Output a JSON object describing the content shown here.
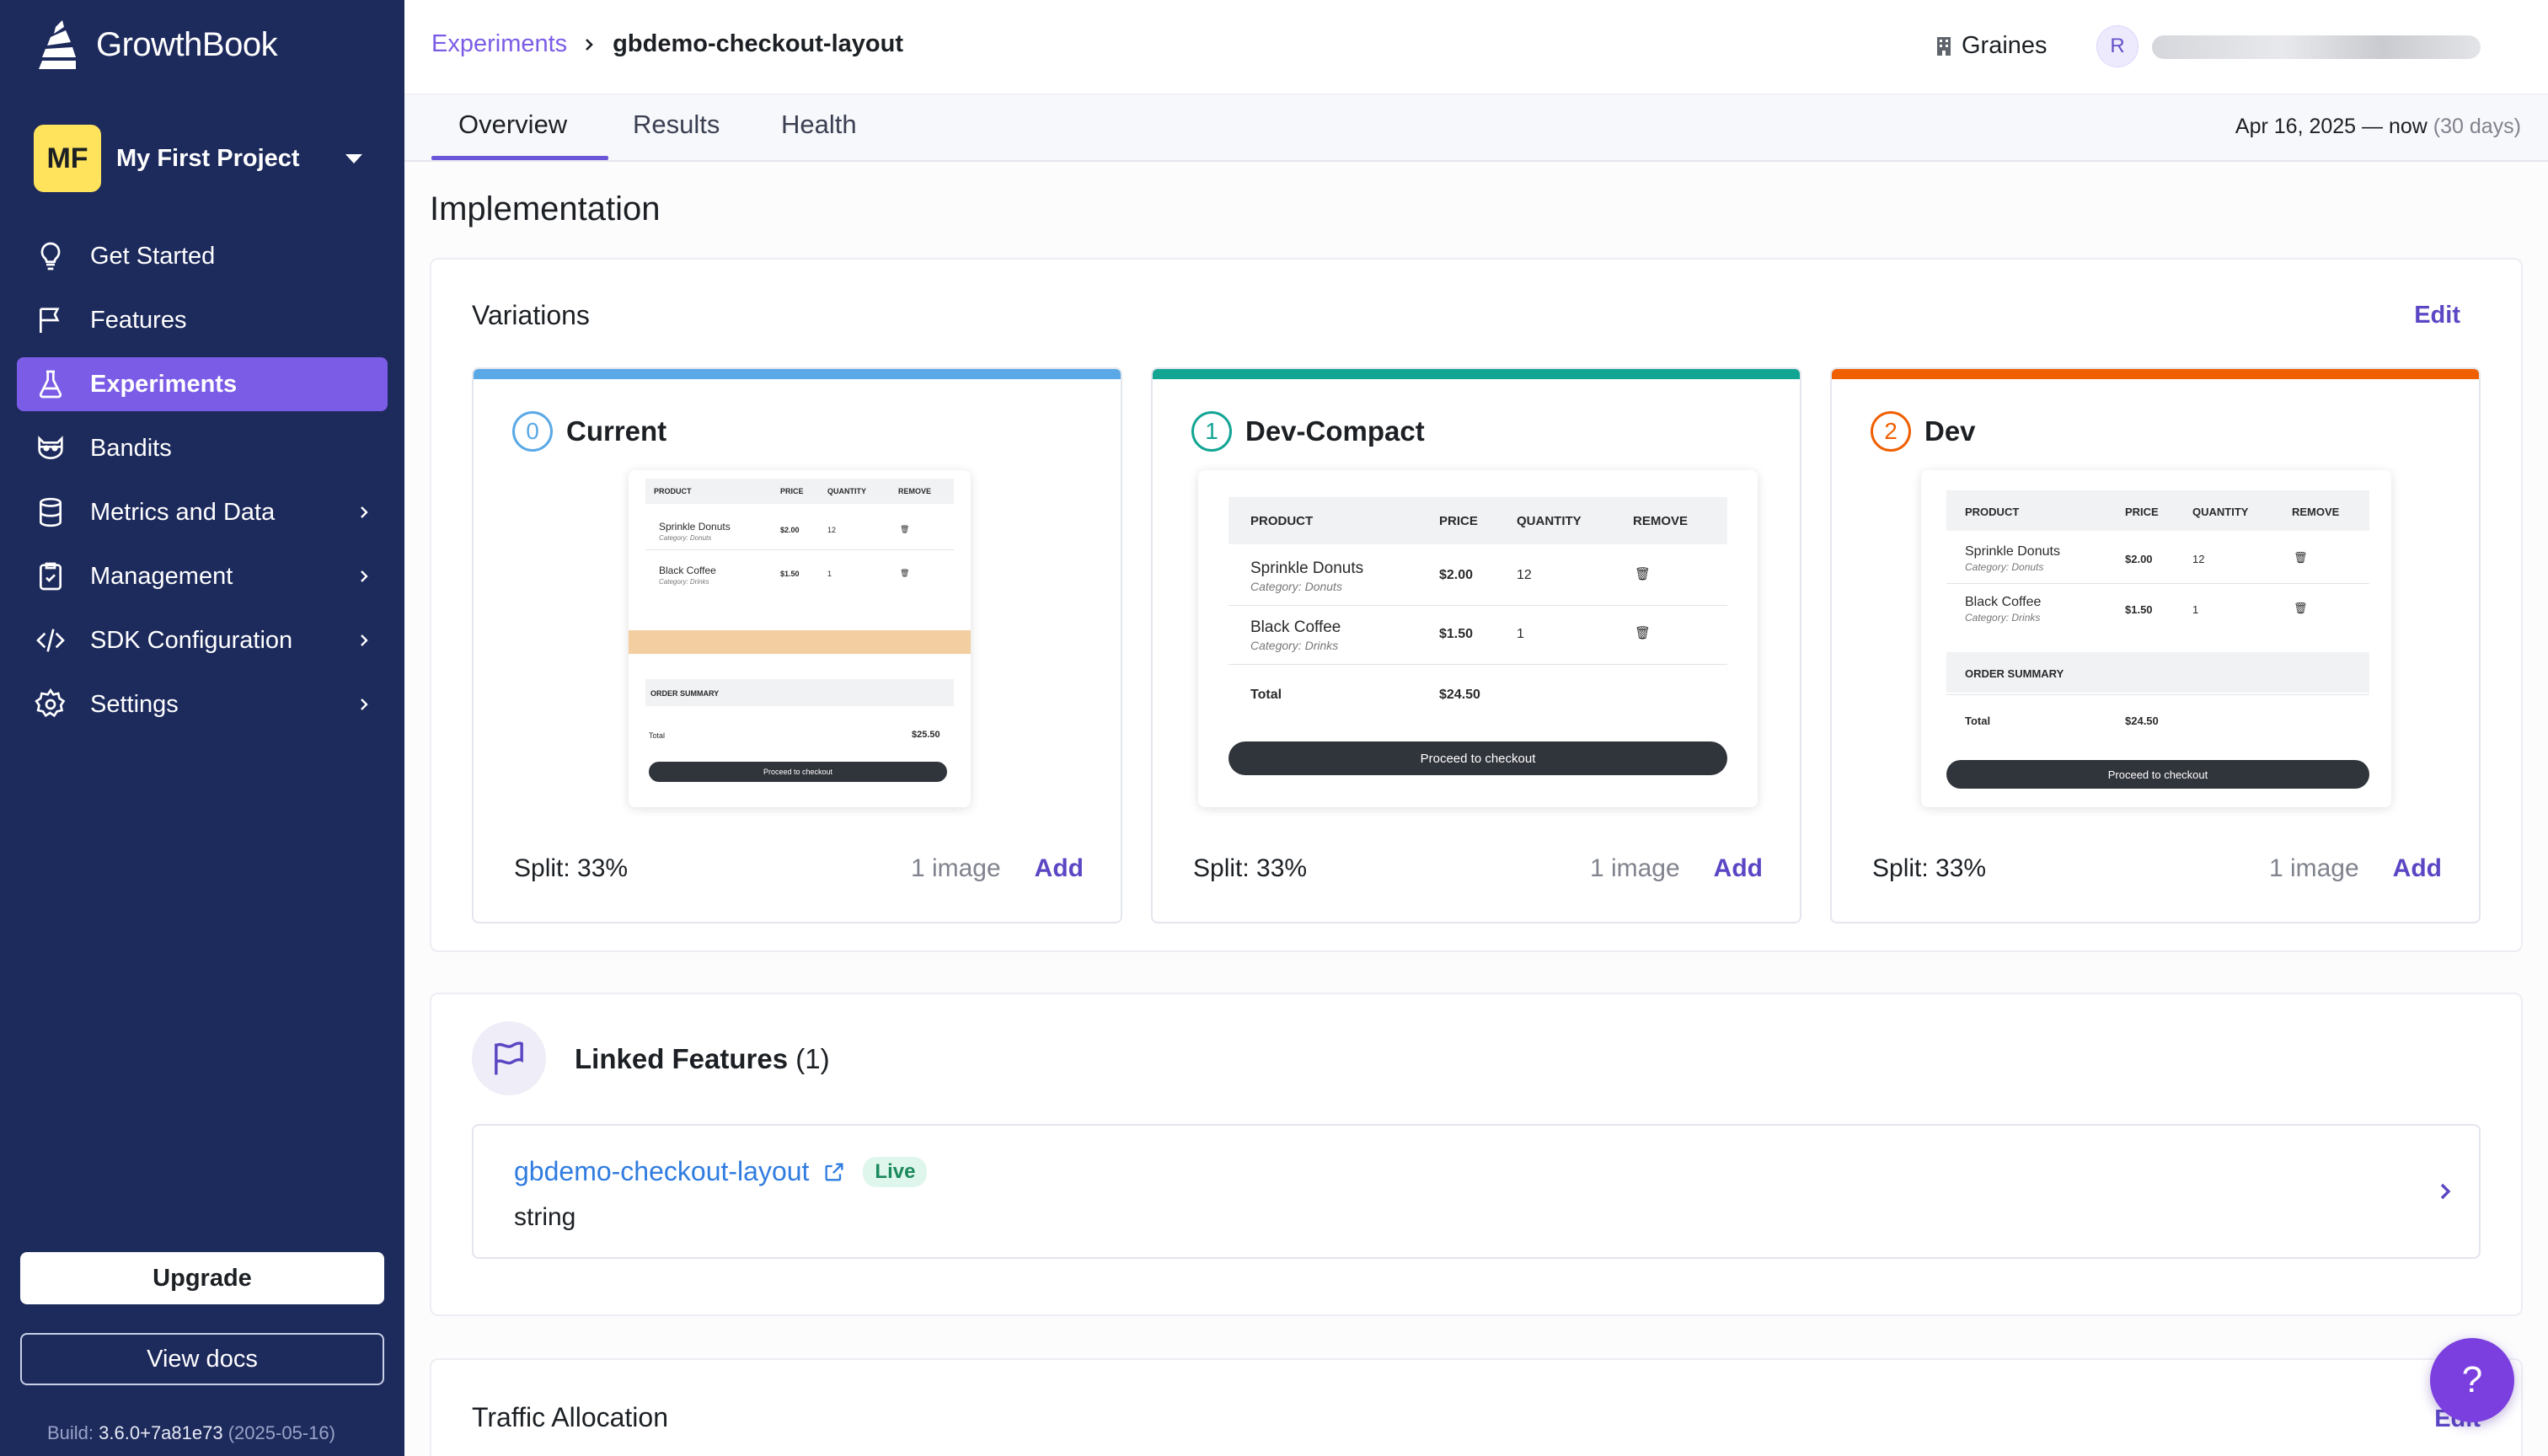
{
  "sidebar": {
    "brand": "GrowthBook",
    "project": {
      "initials": "MF",
      "name": "My First Project"
    },
    "items": [
      {
        "label": "Get Started",
        "icon": "lightbulb-icon"
      },
      {
        "label": "Features",
        "icon": "flag-icon"
      },
      {
        "label": "Experiments",
        "icon": "flask-icon",
        "active": true
      },
      {
        "label": "Bandits",
        "icon": "bandit-icon"
      },
      {
        "label": "Metrics and Data",
        "icon": "database-icon",
        "submenu": true
      },
      {
        "label": "Management",
        "icon": "clipboard-icon",
        "submenu": true
      },
      {
        "label": "SDK Configuration",
        "icon": "code-icon",
        "submenu": true
      },
      {
        "label": "Settings",
        "icon": "gear-icon",
        "submenu": true
      }
    ],
    "upgrade_label": "Upgrade",
    "docs_label": "View docs",
    "build_label": "Build:",
    "build_version": "3.6.0+7a81e73",
    "build_date": "(2025-05-16)"
  },
  "header": {
    "breadcrumb_root": "Experiments",
    "breadcrumb_current": "gbdemo-checkout-layout",
    "org": "Graines",
    "user_initial": "R"
  },
  "tabs": [
    "Overview",
    "Results",
    "Health"
  ],
  "date_range": {
    "text": "Apr 16, 2025 — now",
    "duration": "(30 days)"
  },
  "implementation": {
    "heading": "Implementation",
    "variations_title": "Variations",
    "edit_label": "Edit",
    "variations": [
      {
        "index": "0",
        "name": "Current",
        "split": "Split: 33%",
        "images": "1 image",
        "add": "Add",
        "color": "#5aa9e6"
      },
      {
        "index": "1",
        "name": "Dev-Compact",
        "split": "Split: 33%",
        "images": "1 image",
        "add": "Add",
        "color": "#12a594"
      },
      {
        "index": "2",
        "name": "Dev",
        "split": "Split: 33%",
        "images": "1 image",
        "add": "Add",
        "color": "#ef5f00"
      }
    ],
    "mock": {
      "headers": [
        "PRODUCT",
        "PRICE",
        "QUANTITY",
        "REMOVE"
      ],
      "rows": [
        {
          "name": "Sprinkle Donuts",
          "category": "Category: Donuts",
          "price": "$2.00",
          "qty": "12"
        },
        {
          "name": "Black Coffee",
          "category": "Category: Drinks",
          "price": "$1.50",
          "qty": "1"
        }
      ],
      "order_summary": "ORDER SUMMARY",
      "total_label": "Total",
      "total_current": "$25.50",
      "total": "$24.50",
      "checkout": "Proceed to checkout"
    }
  },
  "linked_features": {
    "title": "Linked Features",
    "count": "(1)",
    "feature_key": "gbdemo-checkout-layout",
    "status": "Live",
    "type": "string"
  },
  "traffic": {
    "title": "Traffic Allocation",
    "edit_label": "Edit"
  },
  "help_label": "?"
}
